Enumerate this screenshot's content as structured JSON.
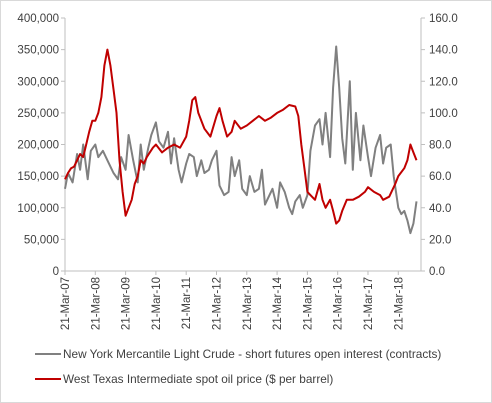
{
  "chart_data": {
    "type": "line",
    "title": "",
    "xlabel": "",
    "ylabel_left": "",
    "ylabel_right": "",
    "x_ticks": [
      "21-Mar-07",
      "21-Mar-08",
      "21-Mar-09",
      "21-Mar-10",
      "21-Mar-11",
      "21-Mar-12",
      "21-Mar-13",
      "21-Mar-14",
      "21-Mar-15",
      "21-Mar-16",
      "21-Mar-17",
      "21-Mar-18"
    ],
    "x_range": [
      2007.0,
      2018.75
    ],
    "y_left": {
      "range": [
        0,
        400000
      ],
      "ticks": [
        "0",
        "50,000",
        "100,000",
        "150,000",
        "200,000",
        "250,000",
        "300,000",
        "350,000",
        "400,000"
      ]
    },
    "y_right": {
      "range": [
        0,
        160
      ],
      "ticks": [
        "0.0",
        "20.0",
        "40.0",
        "60.0",
        "80.0",
        "100.0",
        "120.0",
        "140.0",
        "160.0"
      ]
    },
    "grid": false,
    "legend_position": "bottom",
    "series": [
      {
        "name": "New York Mercantile Light Crude - short futures open interest (contracts)",
        "axis": "left",
        "color": "#808080",
        "x": [
          2007.0,
          2007.1,
          2007.25,
          2007.4,
          2007.5,
          2007.6,
          2007.75,
          2007.85,
          2008.0,
          2008.1,
          2008.25,
          2008.4,
          2008.5,
          2008.6,
          2008.75,
          2008.85,
          2009.0,
          2009.1,
          2009.25,
          2009.4,
          2009.5,
          2009.6,
          2009.75,
          2009.85,
          2010.0,
          2010.1,
          2010.25,
          2010.4,
          2010.5,
          2010.6,
          2010.75,
          2010.85,
          2011.0,
          2011.1,
          2011.25,
          2011.35,
          2011.5,
          2011.6,
          2011.75,
          2011.85,
          2012.0,
          2012.1,
          2012.25,
          2012.4,
          2012.5,
          2012.6,
          2012.75,
          2012.85,
          2013.0,
          2013.1,
          2013.25,
          2013.4,
          2013.5,
          2013.6,
          2013.75,
          2013.85,
          2014.0,
          2014.1,
          2014.25,
          2014.4,
          2014.5,
          2014.6,
          2014.75,
          2014.85,
          2015.0,
          2015.1,
          2015.25,
          2015.4,
          2015.5,
          2015.6,
          2015.75,
          2015.85,
          2015.95,
          2016.05,
          2016.15,
          2016.25,
          2016.4,
          2016.5,
          2016.6,
          2016.75,
          2016.85,
          2017.0,
          2017.1,
          2017.25,
          2017.4,
          2017.5,
          2017.6,
          2017.75,
          2017.85,
          2018.0,
          2018.1,
          2018.2,
          2018.3,
          2018.4,
          2018.5,
          2018.6
        ],
        "values": [
          130000,
          155000,
          140000,
          185000,
          160000,
          200000,
          145000,
          190000,
          200000,
          180000,
          190000,
          175000,
          165000,
          155000,
          145000,
          180000,
          160000,
          215000,
          175000,
          140000,
          200000,
          160000,
          195000,
          215000,
          235000,
          205000,
          195000,
          220000,
          170000,
          210000,
          160000,
          140000,
          170000,
          185000,
          180000,
          150000,
          175000,
          155000,
          160000,
          175000,
          190000,
          135000,
          120000,
          125000,
          180000,
          150000,
          175000,
          130000,
          120000,
          150000,
          125000,
          130000,
          160000,
          105000,
          120000,
          130000,
          100000,
          140000,
          125000,
          100000,
          90000,
          110000,
          120000,
          100000,
          120000,
          190000,
          230000,
          240000,
          200000,
          250000,
          180000,
          290000,
          355000,
          290000,
          210000,
          170000,
          300000,
          160000,
          250000,
          175000,
          230000,
          180000,
          150000,
          195000,
          215000,
          170000,
          195000,
          200000,
          150000,
          100000,
          90000,
          95000,
          80000,
          60000,
          75000,
          110000
        ]
      },
      {
        "name": "West Texas Intermediate spot oil price ($ per barrel)",
        "axis": "right",
        "color": "#c00000",
        "x": [
          2007.0,
          2007.1,
          2007.2,
          2007.3,
          2007.4,
          2007.5,
          2007.6,
          2007.7,
          2007.8,
          2007.9,
          2008.0,
          2008.1,
          2008.2,
          2008.3,
          2008.4,
          2008.5,
          2008.6,
          2008.7,
          2008.8,
          2008.9,
          2009.0,
          2009.1,
          2009.2,
          2009.3,
          2009.4,
          2009.5,
          2009.6,
          2009.7,
          2009.8,
          2009.9,
          2010.0,
          2010.2,
          2010.4,
          2010.6,
          2010.8,
          2011.0,
          2011.1,
          2011.2,
          2011.3,
          2011.4,
          2011.6,
          2011.8,
          2012.0,
          2012.1,
          2012.2,
          2012.35,
          2012.5,
          2012.6,
          2012.8,
          2013.0,
          2013.2,
          2013.4,
          2013.6,
          2013.8,
          2014.0,
          2014.2,
          2014.4,
          2014.6,
          2014.7,
          2014.8,
          2014.9,
          2015.0,
          2015.1,
          2015.25,
          2015.4,
          2015.5,
          2015.6,
          2015.75,
          2015.85,
          2015.95,
          2016.05,
          2016.15,
          2016.3,
          2016.5,
          2016.7,
          2016.9,
          2017.0,
          2017.2,
          2017.4,
          2017.5,
          2017.7,
          2017.9,
          2018.0,
          2018.2,
          2018.3,
          2018.4,
          2018.5,
          2018.6
        ],
        "values": [
          58,
          62,
          65,
          66,
          70,
          74,
          72,
          80,
          88,
          95,
          95,
          100,
          110,
          130,
          140,
          130,
          115,
          100,
          70,
          50,
          35,
          40,
          45,
          55,
          60,
          70,
          68,
          72,
          75,
          78,
          80,
          75,
          78,
          80,
          78,
          85,
          95,
          108,
          110,
          100,
          90,
          85,
          98,
          103,
          95,
          85,
          88,
          95,
          90,
          92,
          95,
          98,
          95,
          97,
          100,
          102,
          105,
          104,
          98,
          80,
          65,
          50,
          48,
          45,
          55,
          45,
          40,
          45,
          38,
          30,
          32,
          38,
          45,
          45,
          47,
          50,
          53,
          50,
          48,
          45,
          47,
          55,
          60,
          65,
          70,
          80,
          75,
          70
        ]
      }
    ]
  },
  "legend": [
    {
      "label": "New York Mercantile Light Crude - short futures open interest (contracts)",
      "color": "#808080"
    },
    {
      "label": "West Texas Intermediate spot oil price ($ per barrel)",
      "color": "#c00000"
    }
  ]
}
